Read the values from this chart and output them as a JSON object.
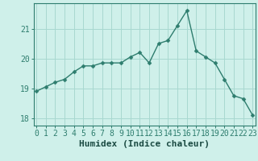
{
  "x": [
    0,
    1,
    2,
    3,
    4,
    5,
    6,
    7,
    8,
    9,
    10,
    11,
    12,
    13,
    14,
    15,
    16,
    17,
    18,
    19,
    20,
    21,
    22,
    23
  ],
  "y": [
    18.9,
    19.05,
    19.2,
    19.3,
    19.55,
    19.75,
    19.75,
    19.85,
    19.85,
    19.85,
    20.05,
    20.2,
    19.85,
    20.5,
    20.6,
    21.1,
    21.6,
    20.25,
    20.05,
    19.85,
    19.3,
    18.75,
    18.65,
    18.1
  ],
  "xlabel": "Humidex (Indice chaleur)",
  "line_color": "#2e7d6e",
  "marker": "D",
  "marker_size": 2.5,
  "bg_color": "#cff0ea",
  "grid_color": "#a8d8d0",
  "axis_color": "#2e7d6e",
  "tick_color": "#2e7d6e",
  "label_color": "#1a4a42",
  "ylim": [
    17.75,
    21.85
  ],
  "yticks": [
    18,
    19,
    20,
    21
  ],
  "xticks": [
    0,
    1,
    2,
    3,
    4,
    5,
    6,
    7,
    8,
    9,
    10,
    11,
    12,
    13,
    14,
    15,
    16,
    17,
    18,
    19,
    20,
    21,
    22,
    23
  ],
  "xlabel_fontsize": 8,
  "tick_fontsize": 7
}
